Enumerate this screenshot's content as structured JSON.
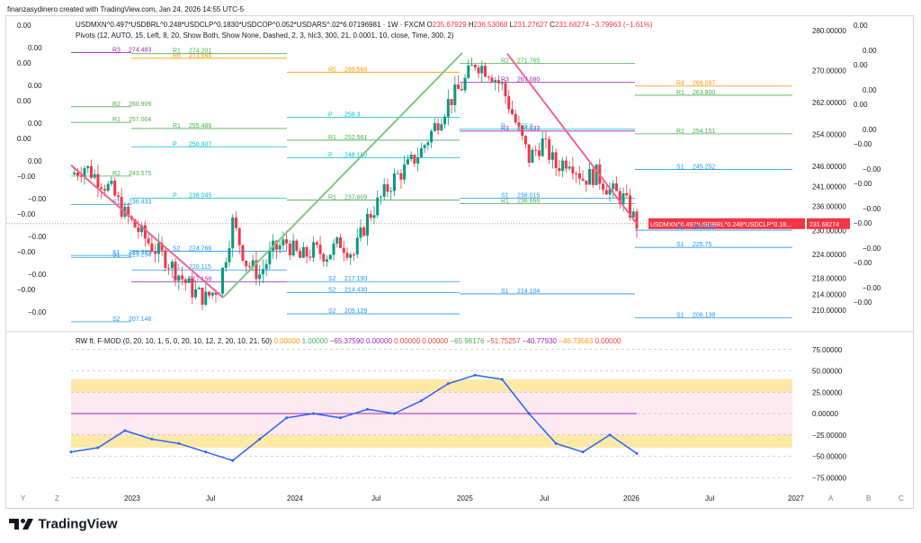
{
  "credit": "finanzasydinero created with TradingView.com, Jan 24, 2026 14:55 UTC-5",
  "legend": {
    "symbol": "USDMXN^0.497*USDBRL^0.248*USDCLP^0.1830*USDCOP^0.052*USDARS^.02*6.07196981 · 1W · FXCM",
    "o_label": "O",
    "o_value": "235.67929",
    "h_label": "H",
    "h_value": "236.53068",
    "l_label": "L",
    "l_value": "231.27627",
    "c_label": "C",
    "c_value": "231.68274",
    "change": "−3.79963 (−1.61%)",
    "pivots": "Pivots (12, AUTO, 15, Left, 8, 20, Show Both, Show None, Dashed, 2, 3, hlc3, 300, 21, 0.0001, 10, close, Time, 300, 2)"
  },
  "osc_legend": {
    "name": "RW ft. F-MOD (0, 20, 10, 1, 5, 0, 20, 10, 12, 2, 20, 10, 21, 50)",
    "values": [
      "0.00000",
      "1.00000",
      "−65.37590",
      "0.00000",
      "0.00000",
      "0.00000",
      "−65.98176",
      "−51.75257",
      "−40.77930",
      "−46.73563",
      "0.00000"
    ],
    "colors": [
      "#ff9800",
      "#4caf50",
      "#9c27b0",
      "#9c27b0",
      "#f44336",
      "#f44336",
      "#4caf50",
      "#f44336",
      "#9c27b0",
      "#ff9800",
      "#f44336"
    ]
  },
  "price_label": {
    "text": "USDMXN^0.497*USDBRL^0.248*USDCLP^0.18...",
    "value": "231.68274"
  },
  "price_axis": [
    "280.00000",
    "270.00000",
    "262.00000",
    "254.00000",
    "246.00000",
    "241.00000",
    "236.00000",
    "230.00000",
    "224.00000",
    "218.00000",
    "214.00000",
    "210.00000"
  ],
  "osc_axis": [
    "75.00000",
    "50.00000",
    "25.00000",
    "0.00000",
    "−25.00000",
    "−50.00000",
    "−75.00000"
  ],
  "time_axis": [
    "2023",
    "Jul",
    "2024",
    "Jul",
    "2025",
    "Jul",
    "2026",
    "Jul",
    "2027"
  ],
  "bottom_letters": [
    "Y",
    "Z",
    "A",
    "B",
    "C"
  ],
  "left_values": [
    "0.00",
    "0.00",
    "0.00",
    "0.00",
    "0.00",
    "0.00",
    "0.00",
    "0.00",
    "−0.00",
    "−0.00",
    "−0.00",
    "−0.00",
    "−0.00",
    "−0.00",
    "−0.00",
    "−0.00"
  ],
  "right_values": [
    "0.00",
    "0.00",
    "0.00",
    "0.00",
    "0.00",
    "0.00",
    "−0.00",
    "−0.00",
    "−0.00",
    "−0.00",
    "−0.00",
    "−0.00",
    "−0.00",
    "−0.00",
    "−0.00"
  ],
  "pivot_labels": [
    {
      "name": "R3",
      "value": "274.483"
    },
    {
      "name": "R6",
      "value": "273.046"
    },
    {
      "name": "R5",
      "value": "269.568"
    },
    {
      "name": "R3",
      "value": "267.080"
    },
    {
      "name": "R4",
      "value": "266.097"
    },
    {
      "name": "R2",
      "value": "260.909"
    },
    {
      "name": "R1",
      "value": "255.486"
    },
    {
      "name": "R1",
      "value": "252.561"
    },
    {
      "name": "R3",
      "value": "254.833"
    },
    {
      "name": "R2",
      "value": "254.151"
    },
    {
      "name": "R2",
      "value": "243.575"
    },
    {
      "name": "P",
      "value": "238.045"
    },
    {
      "name": "R1",
      "value": "237.609"
    },
    {
      "name": "R1",
      "value": "236.666"
    },
    {
      "name": "S1",
      "value": "225.75"
    },
    {
      "name": "S1",
      "value": "223.735"
    },
    {
      "name": "S1",
      "value": "220.115"
    },
    {
      "name": "S2",
      "value": "217.190"
    },
    {
      "name": "S1",
      "value": "214.104"
    },
    {
      "name": "S1",
      "value": "208.138"
    },
    {
      "name": "S2",
      "value": "207.148"
    },
    {
      "name": "R1",
      "value": "274.201"
    },
    {
      "name": "P",
      "value": "258.3"
    },
    {
      "name": "P",
      "value": "255.3"
    },
    {
      "name": "S1",
      "value": "245.252"
    },
    {
      "name": "S1",
      "value": "236.433"
    },
    {
      "name": "S2",
      "value": "224.766"
    },
    {
      "name": "S2",
      "value": "209.129"
    },
    {
      "name": "R2",
      "value": "271.765"
    },
    {
      "name": "R1",
      "value": "263.800"
    },
    {
      "name": "R1",
      "value": "257.004"
    },
    {
      "name": "P",
      "value": "250.907"
    },
    {
      "name": "P",
      "value": "248.180"
    },
    {
      "name": "S1",
      "value": "238.015"
    },
    {
      "name": "S2",
      "value": "230.050"
    },
    {
      "name": "S1",
      "value": "223.254"
    },
    {
      "name": "S3",
      "value": "217.158"
    },
    {
      "name": "S2",
      "value": "214.430"
    }
  ],
  "logo_text": "TradingView",
  "chart_data": [
    {
      "type": "line",
      "series": [
        {
          "x": [
            "2022-07",
            "2022-08",
            "2022-09",
            "2022-10",
            "2022-11",
            "2022-12",
            "2023-01",
            "2023-02",
            "2023-03",
            "2023-04",
            "2023-05",
            "2023-06",
            "2023-07",
            "2023-08",
            "2023-09",
            "2023-10",
            "2023-11",
            "2023-12",
            "2024-01",
            "2024-02",
            "2024-03",
            "2024-04",
            "2024-05",
            "2024-06",
            "2024-07",
            "2024-08",
            "2024-09",
            "2024-10",
            "2024-11",
            "2024-12",
            "2025-01",
            "2025-02",
            "2025-03",
            "2025-04",
            "2025-05",
            "2025-06",
            "2025-07",
            "2025-08",
            "2025-09",
            "2025-10",
            "2025-11",
            "2025-12",
            "2026-01"
          ],
          "values": [
            244,
            246,
            243,
            240,
            234,
            230,
            226,
            223,
            219,
            215,
            213,
            216,
            232,
            222,
            219,
            225,
            227,
            223,
            225,
            224,
            227,
            224,
            233,
            238,
            243,
            246,
            250,
            256,
            262,
            266,
            272,
            270,
            266,
            257,
            248,
            252,
            246,
            248,
            243,
            244,
            240,
            238,
            231.68
          ]
        }
      ],
      "ylim": [
        206,
        282
      ],
      "yticks": [
        280,
        270,
        262,
        254,
        246,
        241,
        236,
        230,
        224,
        218,
        214,
        210
      ],
      "xticks": [
        "2023",
        "Jul",
        "2024",
        "Jul",
        "2025",
        "Jul",
        "2026",
        "Jul",
        "2027"
      ],
      "last_value": 231.68274
    },
    {
      "type": "line",
      "series": [
        {
          "x": [
            "2022-07",
            "2022-09",
            "2022-11",
            "2023-01",
            "2023-03",
            "2023-05",
            "2023-07",
            "2023-09",
            "2023-11",
            "2024-01",
            "2024-03",
            "2024-05",
            "2024-07",
            "2024-09",
            "2024-11",
            "2025-01",
            "2025-03",
            "2025-05",
            "2025-07",
            "2025-09",
            "2025-11",
            "2026-01"
          ],
          "values": [
            -45,
            -40,
            -20,
            -30,
            -35,
            -45,
            -55,
            -30,
            -5,
            0,
            -5,
            5,
            0,
            15,
            35,
            45,
            40,
            0,
            -35,
            -45,
            -25,
            -46.7
          ]
        }
      ],
      "ylim": [
        -80,
        80
      ],
      "yticks": [
        75,
        50,
        25,
        0,
        -25,
        -50,
        -75
      ]
    }
  ]
}
